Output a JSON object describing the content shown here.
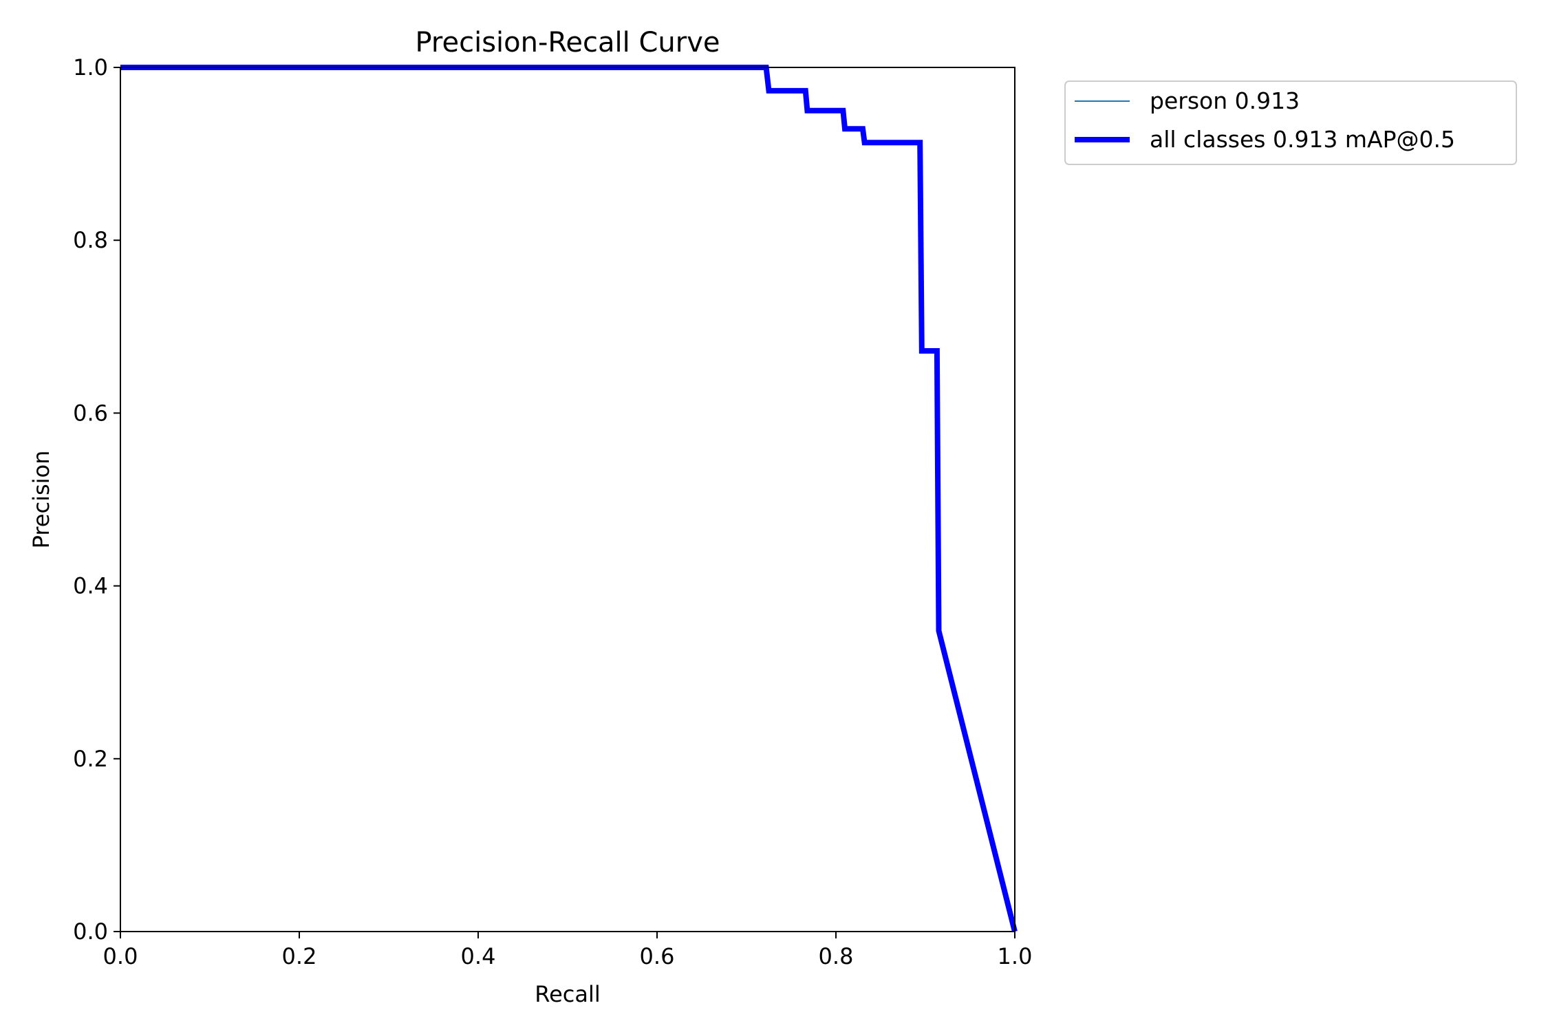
{
  "chart_data": {
    "type": "line",
    "title": "Precision-Recall Curve",
    "xlabel": "Recall",
    "ylabel": "Precision",
    "xlim": [
      0,
      1
    ],
    "ylim": [
      0,
      1
    ],
    "xticks": [
      "0.0",
      "0.2",
      "0.4",
      "0.6",
      "0.8",
      "1.0"
    ],
    "yticks": [
      "0.0",
      "0.2",
      "0.4",
      "0.6",
      "0.8",
      "1.0"
    ],
    "grid": false,
    "legend_position": "outside-top-right",
    "series": [
      {
        "name": "person 0.913",
        "color": "#1f77b4",
        "line": "thin",
        "x": [
          0.0,
          0.722,
          0.725,
          0.766,
          0.768,
          0.808,
          0.81,
          0.83,
          0.832,
          0.894,
          0.896,
          0.913,
          0.915,
          1.0
        ],
        "y": [
          1.0,
          1.0,
          0.973,
          0.973,
          0.95,
          0.95,
          0.929,
          0.929,
          0.913,
          0.913,
          0.672,
          0.672,
          0.348,
          0.0
        ]
      },
      {
        "name": "all classes 0.913 mAP@0.5",
        "color": "#0000ff",
        "line": "thick",
        "x": [
          0.0,
          0.722,
          0.725,
          0.766,
          0.768,
          0.808,
          0.81,
          0.83,
          0.832,
          0.894,
          0.896,
          0.913,
          0.915,
          1.0
        ],
        "y": [
          1.0,
          1.0,
          0.973,
          0.973,
          0.95,
          0.95,
          0.929,
          0.929,
          0.913,
          0.913,
          0.672,
          0.672,
          0.348,
          0.0
        ]
      }
    ]
  }
}
